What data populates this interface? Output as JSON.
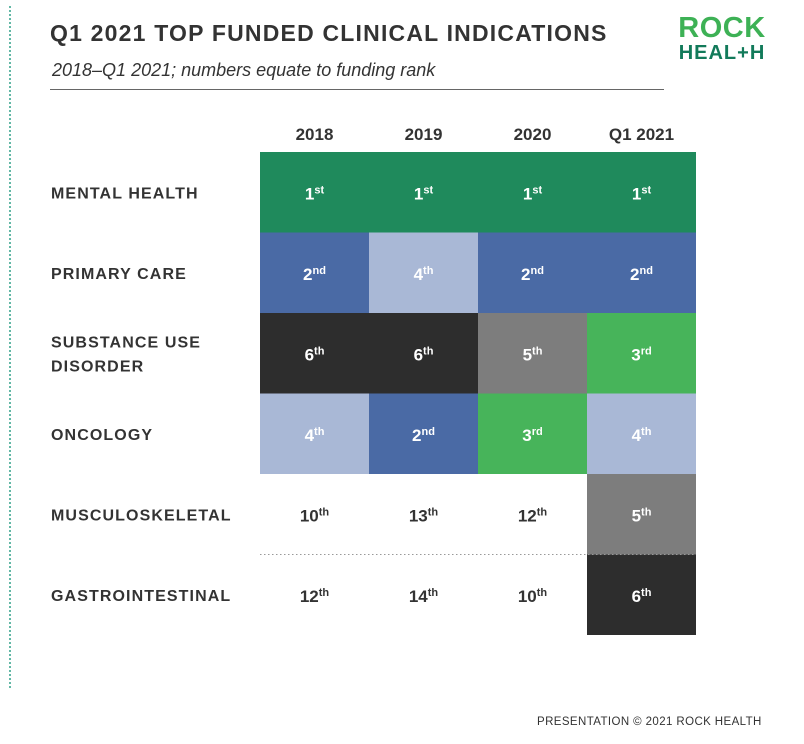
{
  "header": {
    "title": "Q1 2021 TOP FUNDED CLINICAL INDICATIONS",
    "subtitle": "2018–Q1 2021; numbers equate to funding rank"
  },
  "logo": {
    "line1": "ROCK",
    "line2": "HEAL+H"
  },
  "footer": {
    "text": "PRESENTATION © 2021 ROCK HEALTH"
  },
  "chart_data": {
    "type": "table",
    "title": "Q1 2021 TOP FUNDED CLINICAL INDICATIONS",
    "subtitle": "2018–Q1 2021; numbers equate to funding rank",
    "columns": [
      "2018",
      "2019",
      "2020",
      "Q1 2021"
    ],
    "rows": [
      {
        "label_lines": [
          "MENTAL HEALTH"
        ],
        "ranks": [
          1,
          1,
          1,
          1
        ]
      },
      {
        "label_lines": [
          "PRIMARY CARE"
        ],
        "ranks": [
          2,
          4,
          2,
          2
        ]
      },
      {
        "label_lines": [
          "SUBSTANCE USE",
          "DISORDER"
        ],
        "ranks": [
          6,
          6,
          5,
          3
        ]
      },
      {
        "label_lines": [
          "ONCOLOGY"
        ],
        "ranks": [
          4,
          2,
          3,
          4
        ]
      },
      {
        "label_lines": [
          "MUSCULOSKELETAL"
        ],
        "ranks": [
          10,
          13,
          12,
          5
        ]
      },
      {
        "label_lines": [
          "GASTROINTESTINAL"
        ],
        "ranks": [
          12,
          14,
          10,
          6
        ]
      }
    ],
    "rank_colors": {
      "1": "#1f8a5c",
      "2": "#4a6aa5",
      "3": "#47b45a",
      "4": "#a9b8d6",
      "5": "#7d7d7d",
      "6": "#2d2d2d"
    },
    "unranked_color": "#ffffff",
    "shaded_max_rank": 6
  }
}
